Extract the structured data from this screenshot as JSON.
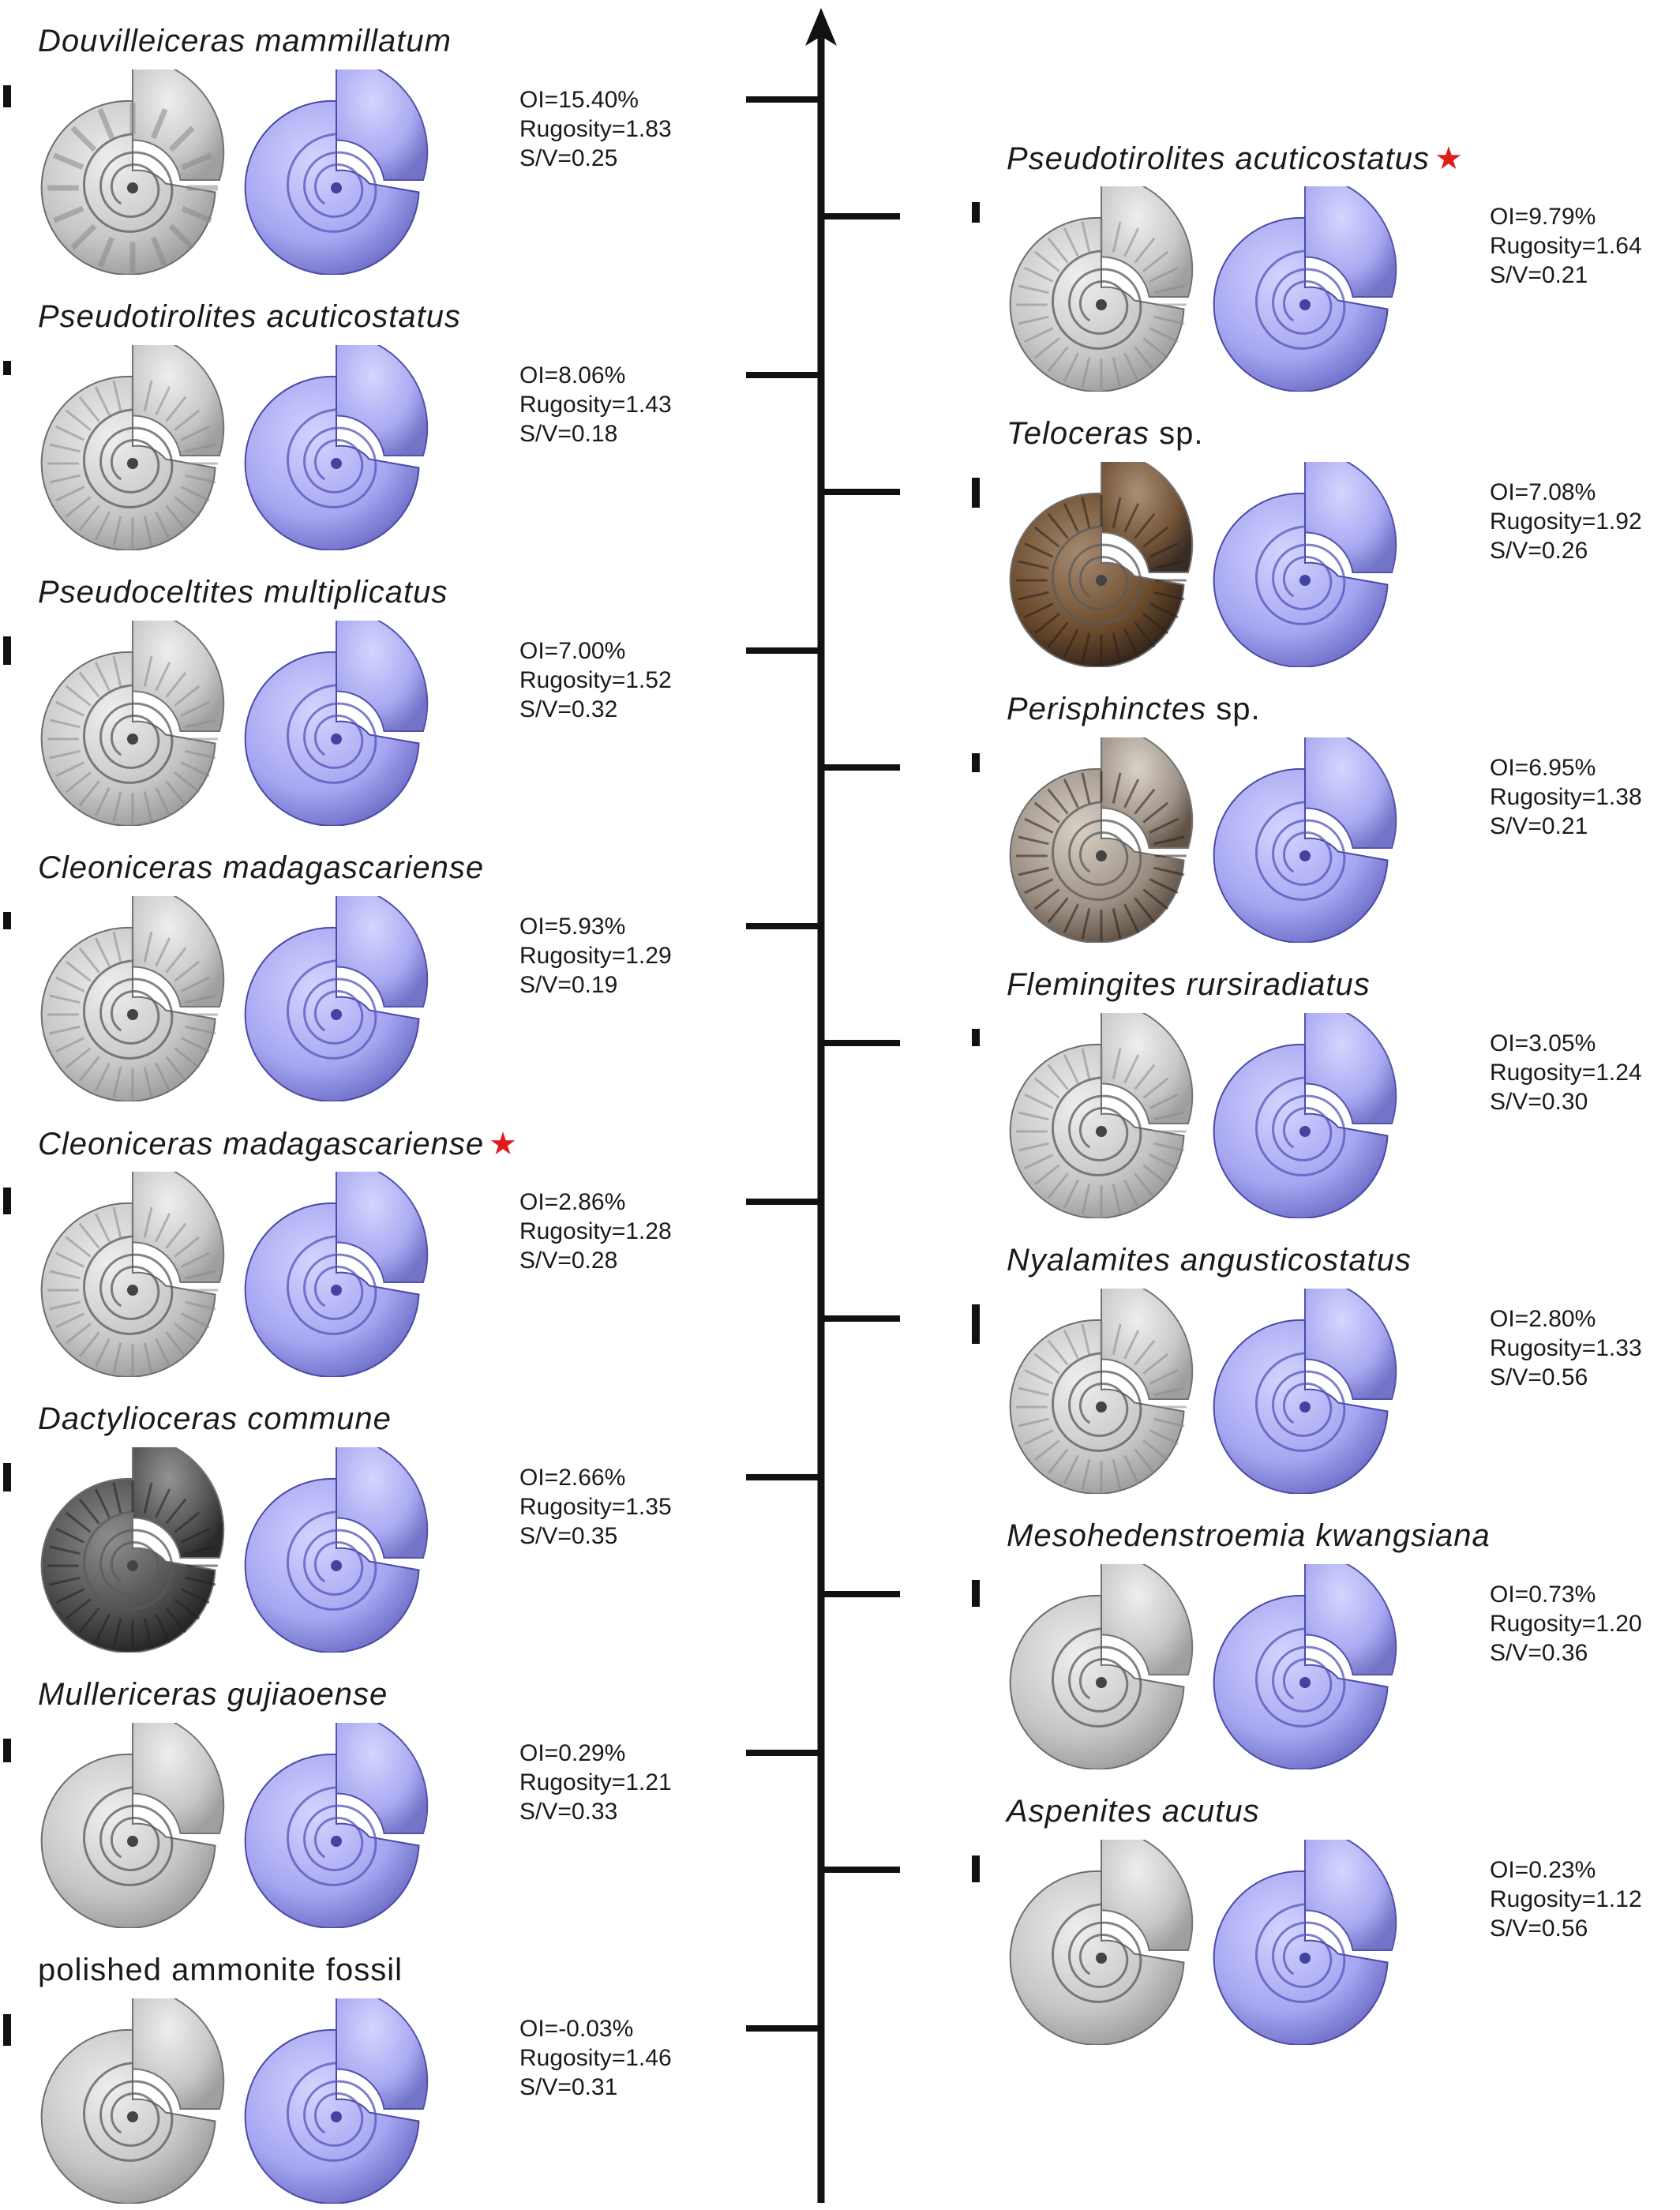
{
  "palette": {
    "model_light": "#d4d4ff",
    "model_mid": "#a6a6f2",
    "model_dark": "#6c6cc6",
    "fossil_grey_light": "#eeeeee",
    "fossil_grey_dark": "#9a9a9a",
    "fossil_brown": "#6b4a2c",
    "fossil_dark": "#4c4c4c",
    "star": "#e01b1b",
    "axis": "#111111"
  },
  "axis": {
    "direction": "up",
    "arrow": true
  },
  "left_column": [
    {
      "name": "Douvilleiceras mammillatum",
      "suffix": "",
      "star": "",
      "oi": "OI=15.40%",
      "rugosity": "Rugosity=1.83",
      "sv": "S/V=0.25",
      "photo_type": "grey-tuberculate",
      "photo_icon": "ammonite-scan-icon",
      "model_icon": "ammonite-model-icon"
    },
    {
      "name": "Pseudotirolites acuticostatus",
      "suffix": "",
      "star": "",
      "oi": "OI=8.06%",
      "rugosity": "Rugosity=1.43",
      "sv": "S/V=0.18",
      "photo_type": "grey-ribbed",
      "photo_icon": "ammonite-scan-icon",
      "model_icon": "ammonite-model-icon"
    },
    {
      "name": "Pseudoceltites multiplicatus",
      "suffix": "",
      "star": "",
      "oi": "OI=7.00%",
      "rugosity": "Rugosity=1.52",
      "sv": "S/V=0.32",
      "photo_type": "grey-ribbed",
      "photo_icon": "ammonite-scan-icon",
      "model_icon": "ammonite-model-icon"
    },
    {
      "name": "Cleoniceras madagascariense",
      "suffix": "",
      "star": "",
      "oi": "OI=5.93%",
      "rugosity": "Rugosity=1.29",
      "sv": "S/V=0.19",
      "photo_type": "grey-ribbed",
      "photo_icon": "ammonite-scan-icon",
      "model_icon": "ammonite-model-icon"
    },
    {
      "name": "Cleoniceras madagascariense",
      "suffix": "",
      "star": "★",
      "oi": "OI=2.86%",
      "rugosity": "Rugosity=1.28",
      "sv": "S/V=0.28",
      "photo_type": "grey-ribbed",
      "photo_icon": "ammonite-scan-icon",
      "model_icon": "ammonite-model-icon"
    },
    {
      "name": "Dactylioceras commune",
      "suffix": "",
      "star": "",
      "oi": "OI=2.66%",
      "rugosity": "Rugosity=1.35",
      "sv": "S/V=0.35",
      "photo_type": "dark",
      "photo_icon": "ammonite-photo-icon",
      "model_icon": "ammonite-model-icon"
    },
    {
      "name": "Mullericeras gujiaoense",
      "suffix": "",
      "star": "",
      "oi": "OI=0.29%",
      "rugosity": "Rugosity=1.21",
      "sv": "S/V=0.33",
      "photo_type": "grey-smooth",
      "photo_icon": "ammonite-scan-icon",
      "model_icon": "ammonite-model-icon"
    },
    {
      "name": "",
      "plain_name": "polished ammonite fossil",
      "suffix": "",
      "star": "",
      "oi": "OI=-0.03%",
      "rugosity": "Rugosity=1.46",
      "sv": "S/V=0.31",
      "photo_type": "grey-smooth",
      "photo_icon": "ammonite-scan-icon",
      "model_icon": "ammonite-model-icon"
    }
  ],
  "right_column": [
    {
      "name": "Pseudotirolites acuticostatus",
      "suffix": "",
      "star": "★",
      "oi": "OI=9.79%",
      "rugosity": "Rugosity=1.64",
      "sv": "S/V=0.21",
      "photo_type": "grey-ribbed",
      "photo_icon": "ammonite-scan-icon",
      "model_icon": "ammonite-model-icon"
    },
    {
      "name": "Teloceras",
      "suffix": " sp.",
      "star": "",
      "oi": "OI=7.08%",
      "rugosity": "Rugosity=1.92",
      "sv": "S/V=0.26",
      "photo_type": "brown",
      "photo_icon": "ammonite-photo-icon",
      "model_icon": "ammonite-model-icon"
    },
    {
      "name": "Perisphinctes",
      "suffix": " sp.",
      "star": "",
      "oi": "OI=6.95%",
      "rugosity": "Rugosity=1.38",
      "sv": "S/V=0.21",
      "photo_type": "brown-light",
      "photo_icon": "ammonite-photo-icon",
      "model_icon": "ammonite-model-icon"
    },
    {
      "name": "Flemingites rursiradiatus",
      "suffix": "",
      "star": "",
      "oi": "OI=3.05%",
      "rugosity": "Rugosity=1.24",
      "sv": "S/V=0.30",
      "photo_type": "grey-ribbed",
      "photo_icon": "ammonite-scan-icon",
      "model_icon": "ammonite-model-icon"
    },
    {
      "name": "Nyalamites angusticostatus",
      "suffix": "",
      "star": "",
      "oi": "OI=2.80%",
      "rugosity": "Rugosity=1.33",
      "sv": "S/V=0.56",
      "photo_type": "grey-ribbed",
      "photo_icon": "ammonite-scan-icon",
      "model_icon": "ammonite-model-icon"
    },
    {
      "name": "Mesohedenstroemia kwangsiana",
      "suffix": "",
      "star": "",
      "oi": "OI=0.73%",
      "rugosity": "Rugosity=1.20",
      "sv": "S/V=0.36",
      "photo_type": "grey-smooth",
      "photo_icon": "ammonite-scan-icon",
      "model_icon": "ammonite-model-icon"
    },
    {
      "name": "Aspenites acutus",
      "suffix": "",
      "star": "",
      "oi": "OI=0.23%",
      "rugosity": "Rugosity=1.12",
      "sv": "S/V=0.56",
      "photo_type": "grey-smooth",
      "photo_icon": "ammonite-scan-icon",
      "model_icon": "ammonite-model-icon"
    }
  ]
}
